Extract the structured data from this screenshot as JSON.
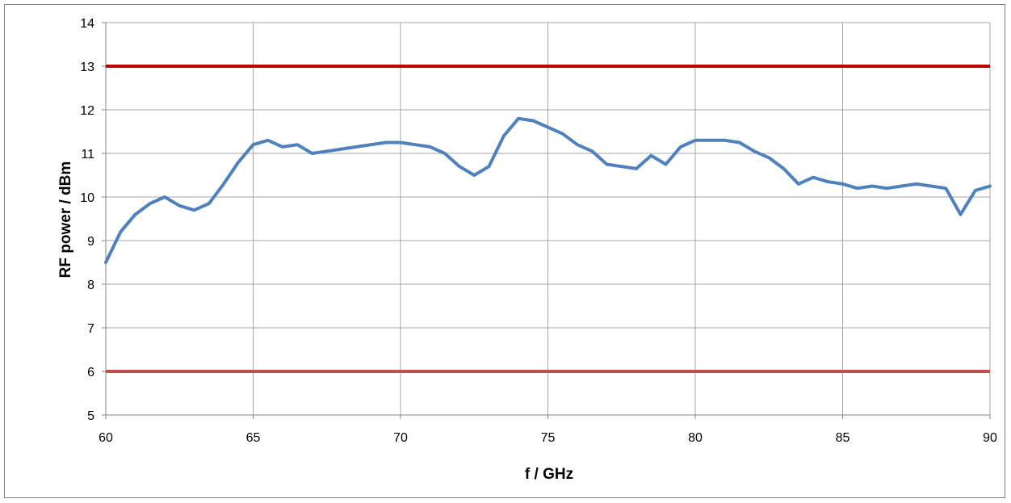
{
  "chart_data": {
    "type": "line",
    "title": "",
    "xlabel": "f / GHz",
    "ylabel": "RF power / dBm",
    "xlim": [
      60,
      90
    ],
    "ylim": [
      5,
      14
    ],
    "xticks": [
      60,
      65,
      70,
      75,
      80,
      85,
      90
    ],
    "yticks": [
      5,
      6,
      7,
      8,
      9,
      10,
      11,
      12,
      13,
      14
    ],
    "grid": true,
    "legend": "none",
    "limit_lines": [
      {
        "y": 13,
        "color": "#c00000"
      },
      {
        "y": 6,
        "color": "#c0504d"
      }
    ],
    "series": [
      {
        "color": "#4f81bd",
        "x": [
          60,
          60.5,
          61,
          61.5,
          62,
          62.5,
          63,
          63.5,
          64,
          64.5,
          65,
          65.5,
          66,
          66.5,
          67,
          67.5,
          68,
          68.5,
          69,
          69.5,
          70,
          70.5,
          71,
          71.5,
          72,
          72.5,
          73,
          73.5,
          74,
          74.5,
          75,
          75.5,
          76,
          76.5,
          77,
          77.5,
          78,
          78.5,
          79,
          79.5,
          80,
          80.5,
          81,
          81.5,
          82,
          82.5,
          83,
          83.5,
          84,
          84.5,
          85,
          85.5,
          86,
          86.5,
          87,
          87.5,
          88,
          88.5,
          89,
          89.5,
          90
        ],
        "y": [
          8.5,
          9.2,
          9.6,
          9.85,
          10.0,
          9.8,
          9.7,
          9.85,
          10.3,
          10.8,
          11.2,
          11.3,
          11.15,
          11.2,
          11.0,
          11.05,
          11.1,
          11.15,
          11.2,
          11.25,
          11.25,
          11.2,
          11.15,
          11.0,
          10.7,
          10.5,
          10.7,
          11.4,
          11.8,
          11.75,
          11.6,
          11.45,
          11.2,
          11.05,
          10.75,
          10.7,
          10.65,
          10.95,
          10.75,
          11.15,
          11.3,
          11.3,
          11.3,
          11.25,
          11.05,
          10.9,
          10.65,
          10.3,
          10.45,
          10.35,
          10.3,
          10.2,
          10.25,
          10.2,
          10.25,
          10.3,
          10.25,
          10.2,
          9.6,
          10.15,
          10.25
        ]
      }
    ]
  }
}
